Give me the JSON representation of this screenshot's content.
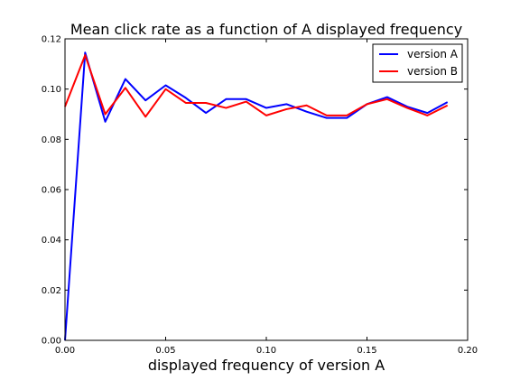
{
  "chart_data": {
    "type": "line",
    "title": "Mean click rate as a function of A displayed frequency",
    "xlabel": "displayed frequency of version A",
    "ylabel": "",
    "xlim": [
      0.0,
      0.2
    ],
    "ylim": [
      0.0,
      0.12
    ],
    "x_ticks": [
      "0.00",
      "0.05",
      "0.10",
      "0.15",
      "0.20"
    ],
    "y_ticks": [
      "0.00",
      "0.02",
      "0.04",
      "0.06",
      "0.08",
      "0.10",
      "0.12"
    ],
    "grid": false,
    "legend_position": "top-right",
    "x": [
      0.0,
      0.01,
      0.02,
      0.03,
      0.04,
      0.05,
      0.06,
      0.07,
      0.08,
      0.09,
      0.1,
      0.11,
      0.12,
      0.13,
      0.14,
      0.15,
      0.16,
      0.17,
      0.18,
      0.19
    ],
    "series": [
      {
        "name": "version A",
        "color": "#0000ff",
        "values": [
          0.0,
          0.1145,
          0.087,
          0.104,
          0.0955,
          0.1015,
          0.0965,
          0.0905,
          0.096,
          0.096,
          0.0925,
          0.094,
          0.091,
          0.0885,
          0.0885,
          0.094,
          0.0968,
          0.093,
          0.0905,
          0.0948
        ]
      },
      {
        "name": "version B",
        "color": "#ff0000",
        "values": [
          0.093,
          0.1135,
          0.09,
          0.1005,
          0.089,
          0.1,
          0.0945,
          0.0945,
          0.0925,
          0.095,
          0.0895,
          0.092,
          0.0935,
          0.0895,
          0.0895,
          0.094,
          0.096,
          0.0925,
          0.0895,
          0.0935
        ]
      }
    ]
  }
}
